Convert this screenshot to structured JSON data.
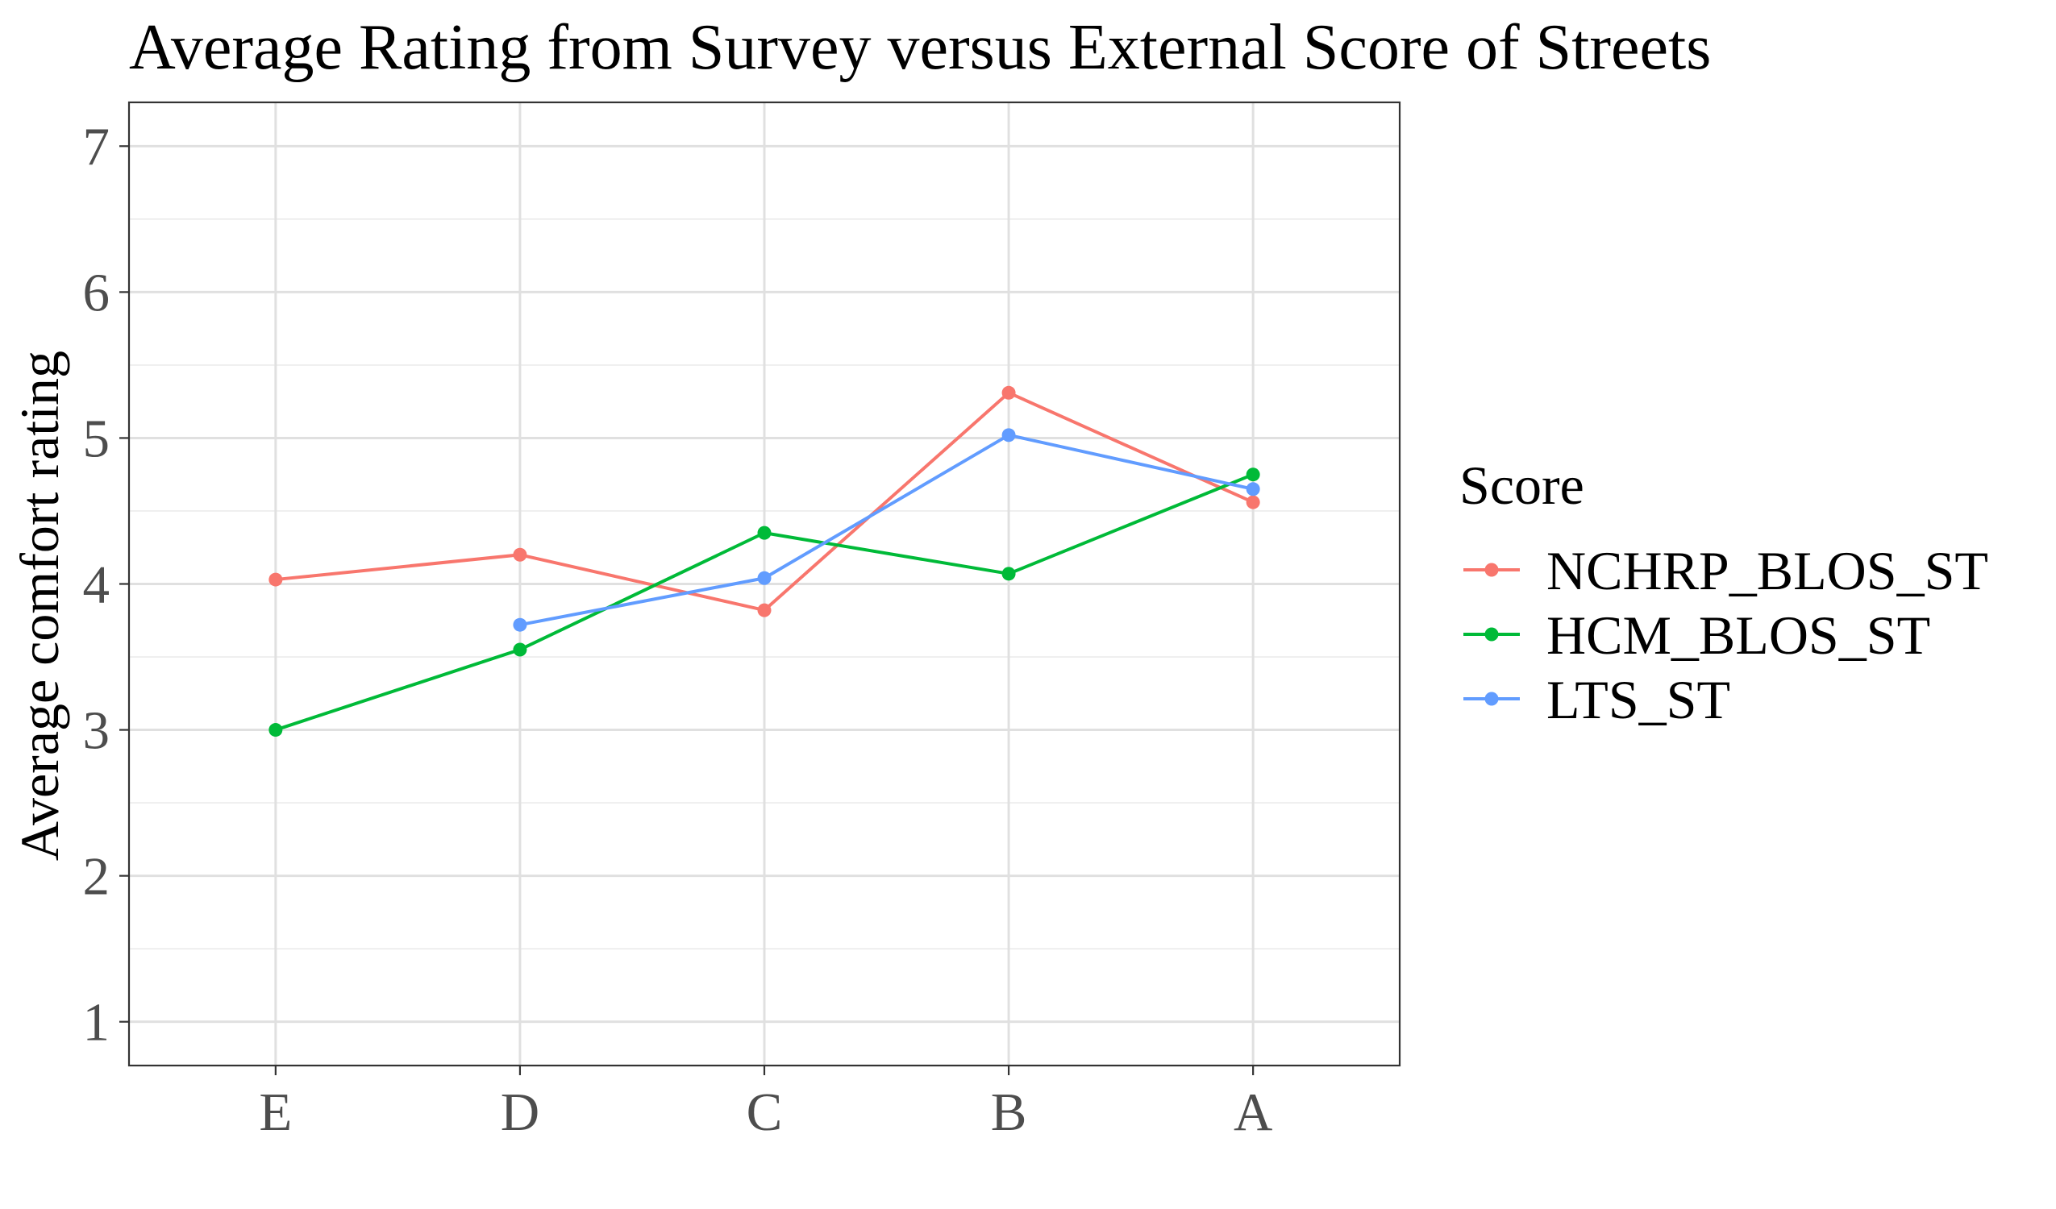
{
  "chart_data": {
    "type": "line",
    "title": "Average Rating from Survey versus External Score of Streets",
    "xlabel": "",
    "ylabel": "Average comfort rating",
    "categories": [
      "E",
      "D",
      "C",
      "B",
      "A"
    ],
    "ylim": [
      0.7,
      7.3
    ],
    "yticks": [
      1,
      2,
      3,
      4,
      5,
      6,
      7
    ],
    "grid": true,
    "legend": {
      "title": "Score",
      "placement": "right"
    },
    "series": [
      {
        "name": "NCHRP_BLOS_ST",
        "color": "#F8766D",
        "values": [
          4.03,
          4.2,
          3.82,
          5.31,
          4.56
        ]
      },
      {
        "name": "HCM_BLOS_ST",
        "color": "#00BA38",
        "values": [
          3.0,
          3.55,
          4.35,
          4.07,
          4.75
        ]
      },
      {
        "name": "LTS_ST",
        "color": "#619CFF",
        "values": [
          null,
          3.72,
          4.04,
          5.02,
          4.65
        ]
      }
    ]
  }
}
